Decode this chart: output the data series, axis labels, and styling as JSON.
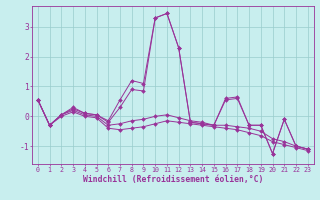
{
  "xlabel": "Windchill (Refroidissement éolien,°C)",
  "ylabel": "",
  "xlim": [
    -0.5,
    23.5
  ],
  "ylim": [
    -1.6,
    3.7
  ],
  "yticks": [
    -1,
    0,
    1,
    2,
    3
  ],
  "xticks": [
    0,
    1,
    2,
    3,
    4,
    5,
    6,
    7,
    8,
    9,
    10,
    11,
    12,
    13,
    14,
    15,
    16,
    17,
    18,
    19,
    20,
    21,
    22,
    23
  ],
  "bg_color": "#c8eeee",
  "line_color": "#993399",
  "grid_color": "#99cccc",
  "series": [
    [
      0.55,
      -0.3,
      0.05,
      0.3,
      0.1,
      0.05,
      -0.15,
      0.55,
      1.2,
      1.1,
      3.3,
      3.45,
      2.3,
      -0.2,
      -0.25,
      -0.3,
      0.6,
      0.65,
      -0.3,
      -0.3,
      -1.25,
      -0.1,
      -1.0,
      -1.1
    ],
    [
      0.55,
      -0.3,
      0.05,
      0.25,
      0.1,
      0.05,
      -0.2,
      0.3,
      0.9,
      0.85,
      3.3,
      3.45,
      2.3,
      -0.2,
      -0.25,
      -0.3,
      0.55,
      0.6,
      -0.3,
      -0.3,
      -1.25,
      -0.1,
      -1.0,
      -1.1
    ],
    [
      0.55,
      -0.3,
      0.05,
      0.2,
      0.05,
      0.0,
      -0.3,
      -0.25,
      -0.15,
      -0.1,
      0.0,
      0.05,
      -0.05,
      -0.15,
      -0.2,
      -0.3,
      -0.3,
      -0.35,
      -0.4,
      -0.5,
      -0.75,
      -0.85,
      -1.0,
      -1.1
    ],
    [
      0.55,
      -0.3,
      0.0,
      0.15,
      0.0,
      -0.05,
      -0.4,
      -0.45,
      -0.4,
      -0.35,
      -0.25,
      -0.15,
      -0.2,
      -0.25,
      -0.3,
      -0.35,
      -0.4,
      -0.45,
      -0.55,
      -0.65,
      -0.85,
      -0.95,
      -1.05,
      -1.15
    ]
  ]
}
